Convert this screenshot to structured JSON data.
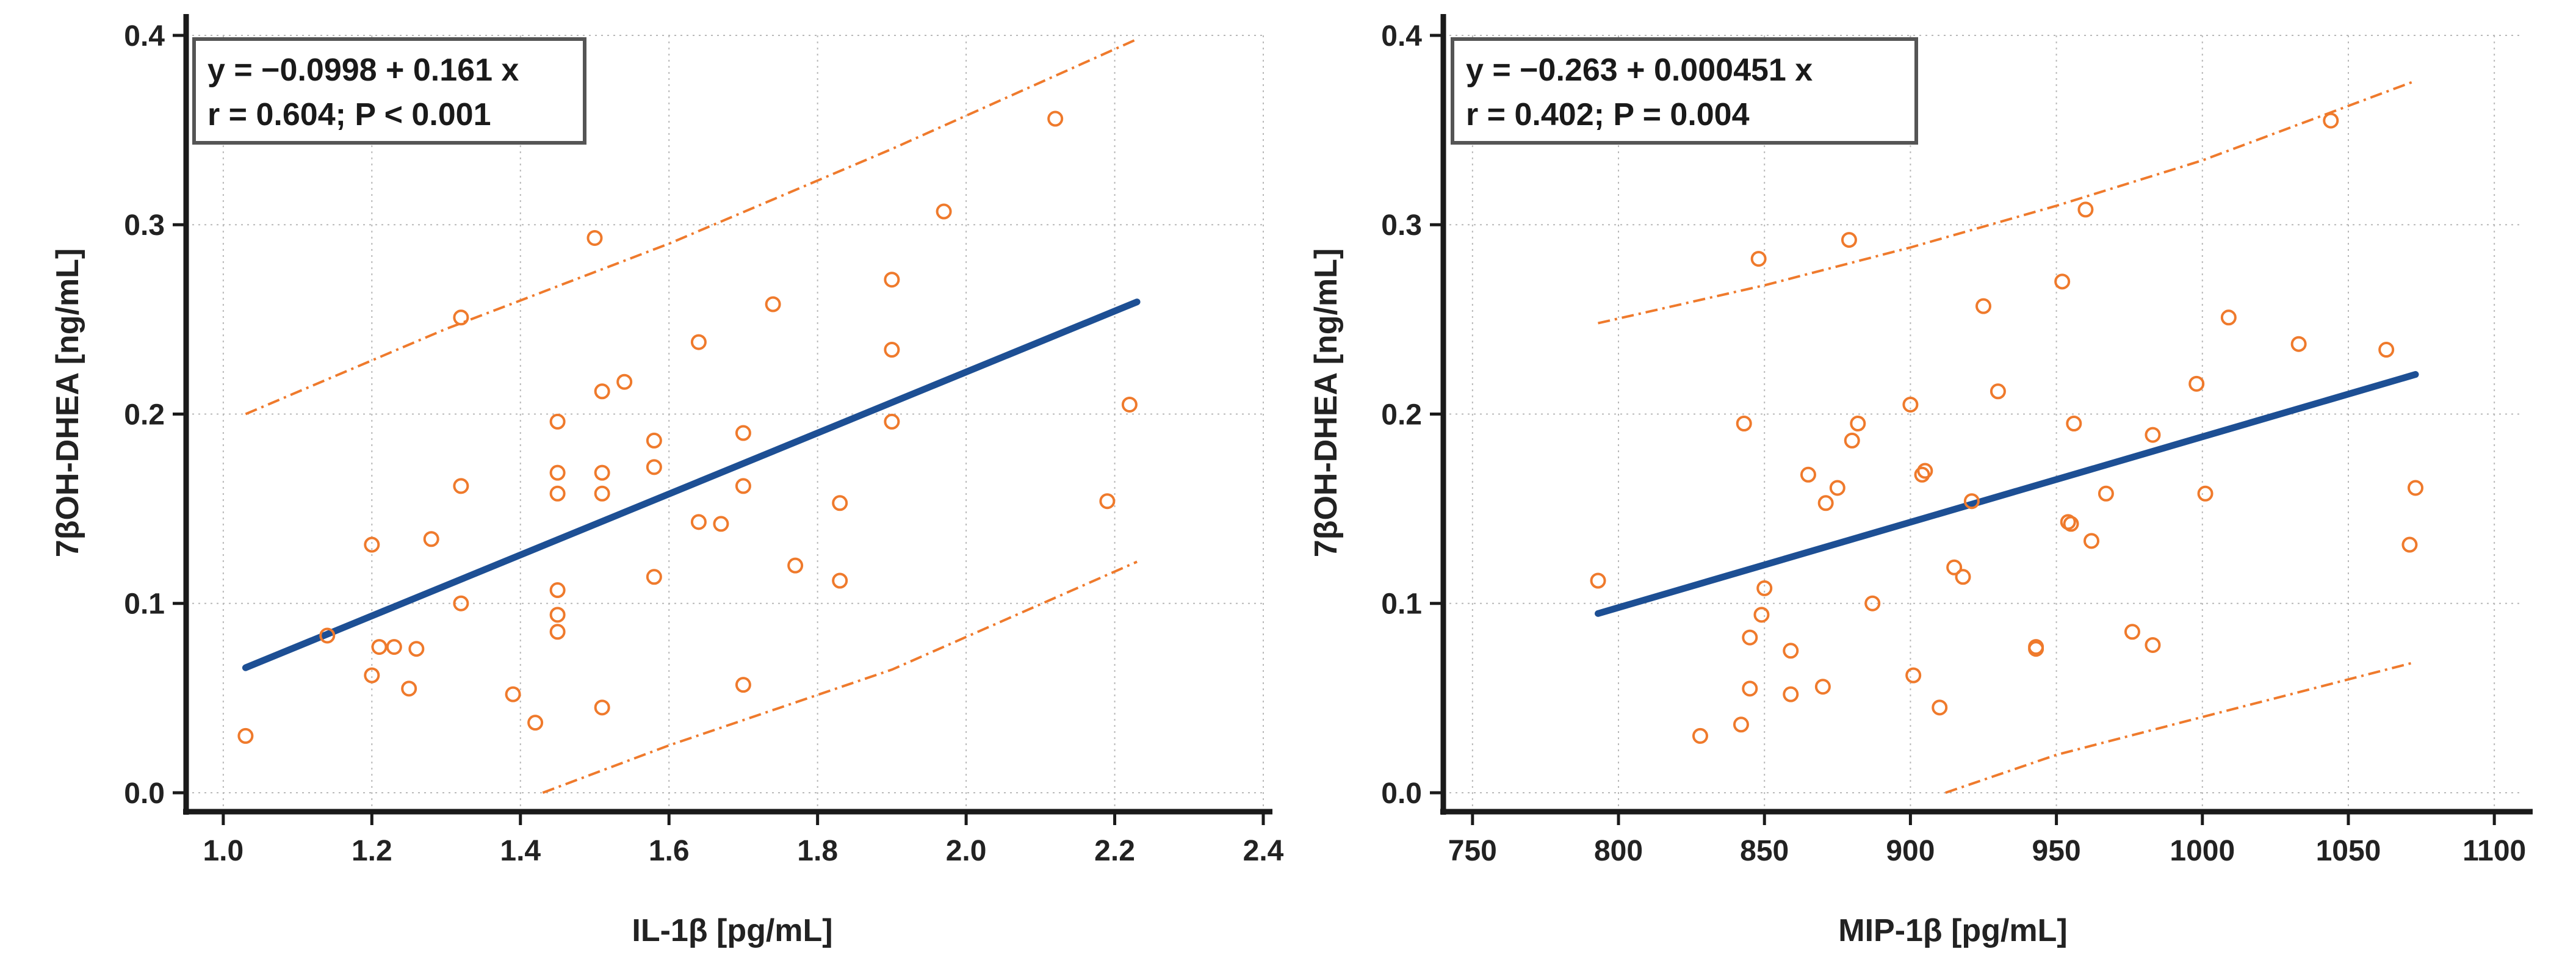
{
  "chart_data": [
    {
      "type": "scatter",
      "title": "",
      "xlabel": "IL-1β [pg/mL]",
      "ylabel": "7βOH-DHEA [ng/mL]",
      "xlim": [
        0.95,
        2.4
      ],
      "ylim": [
        -0.01,
        0.4
      ],
      "xticks": [
        1.0,
        1.2,
        1.4,
        1.6,
        1.8,
        2.0,
        2.2,
        2.4
      ],
      "xtick_labels": [
        "1.0",
        "1.2",
        "1.4",
        "1.6",
        "1.8",
        "2.0",
        "2.2",
        "2.4"
      ],
      "yticks": [
        0.0,
        0.1,
        0.2,
        0.3,
        0.4
      ],
      "ytick_labels": [
        "0.0",
        "0.1",
        "0.2",
        "0.3",
        "0.4"
      ],
      "grid": true,
      "equation_line1": "y = −0.0998  +  0.161  x",
      "equation_line2": "r = 0.604; P < 0.001",
      "fit": {
        "intercept": -0.0998,
        "slope": 0.161,
        "x_range": [
          1.03,
          2.23
        ]
      },
      "prediction_band": {
        "upper": [
          [
            1.03,
            0.2
          ],
          [
            1.3,
            0.245
          ],
          [
            1.6,
            0.29
          ],
          [
            1.9,
            0.34
          ],
          [
            2.23,
            0.398
          ]
        ],
        "lower": [
          [
            1.43,
            0.0
          ],
          [
            1.6,
            0.025
          ],
          [
            1.9,
            0.065
          ],
          [
            2.23,
            0.122
          ]
        ]
      },
      "points": [
        [
          1.03,
          0.03
        ],
        [
          1.14,
          0.083
        ],
        [
          1.2,
          0.131
        ],
        [
          1.2,
          0.062
        ],
        [
          1.21,
          0.077
        ],
        [
          1.23,
          0.077
        ],
        [
          1.25,
          0.055
        ],
        [
          1.26,
          0.076
        ],
        [
          1.28,
          0.134
        ],
        [
          1.32,
          0.162
        ],
        [
          1.32,
          0.251
        ],
        [
          1.32,
          0.1
        ],
        [
          1.39,
          0.052
        ],
        [
          1.42,
          0.037
        ],
        [
          1.45,
          0.196
        ],
        [
          1.45,
          0.169
        ],
        [
          1.45,
          0.158
        ],
        [
          1.45,
          0.107
        ],
        [
          1.45,
          0.094
        ],
        [
          1.45,
          0.085
        ],
        [
          1.5,
          0.293
        ],
        [
          1.51,
          0.212
        ],
        [
          1.51,
          0.169
        ],
        [
          1.51,
          0.158
        ],
        [
          1.51,
          0.045
        ],
        [
          1.54,
          0.217
        ],
        [
          1.58,
          0.186
        ],
        [
          1.58,
          0.172
        ],
        [
          1.58,
          0.114
        ],
        [
          1.64,
          0.238
        ],
        [
          1.64,
          0.143
        ],
        [
          1.67,
          0.142
        ],
        [
          1.7,
          0.19
        ],
        [
          1.7,
          0.162
        ],
        [
          1.7,
          0.057
        ],
        [
          1.74,
          0.258
        ],
        [
          1.77,
          0.12
        ],
        [
          1.83,
          0.153
        ],
        [
          1.83,
          0.112
        ],
        [
          1.9,
          0.271
        ],
        [
          1.9,
          0.234
        ],
        [
          1.9,
          0.196
        ],
        [
          1.97,
          0.307
        ],
        [
          2.12,
          0.356
        ],
        [
          2.19,
          0.154
        ],
        [
          2.22,
          0.205
        ]
      ]
    },
    {
      "type": "scatter",
      "title": "",
      "xlabel": "MIP-1β [pg/mL]",
      "ylabel": "7βOH-DHEA [ng/mL]",
      "xlim": [
        740,
        1110
      ],
      "ylim": [
        -0.01,
        0.4
      ],
      "xticks": [
        750,
        800,
        850,
        900,
        950,
        1000,
        1050,
        1100
      ],
      "xtick_labels": [
        "750",
        "800",
        "850",
        "900",
        "950",
        "1000",
        "1050",
        "1100"
      ],
      "yticks": [
        0.0,
        0.1,
        0.2,
        0.3,
        0.4
      ],
      "ytick_labels": [
        "0.0",
        "0.1",
        "0.2",
        "0.3",
        "0.4"
      ],
      "grid": true,
      "equation_line1": "y = −0.263  +  0.000451  x",
      "equation_line2": "r = 0.402; P = 0.004",
      "fit": {
        "intercept": -0.263,
        "slope": 0.000451,
        "x_range": [
          793,
          1073
        ]
      },
      "prediction_band": {
        "upper": [
          [
            793,
            0.248
          ],
          [
            850,
            0.268
          ],
          [
            900,
            0.288
          ],
          [
            950,
            0.31
          ],
          [
            1000,
            0.334
          ],
          [
            1073,
            0.376
          ]
        ],
        "lower": [
          [
            912,
            0.0
          ],
          [
            950,
            0.02
          ],
          [
            1000,
            0.04
          ],
          [
            1073,
            0.069
          ]
        ]
      },
      "points": [
        [
          793,
          0.112
        ],
        [
          828,
          0.03
        ],
        [
          842,
          0.036
        ],
        [
          843,
          0.195
        ],
        [
          845,
          0.082
        ],
        [
          845,
          0.055
        ],
        [
          848,
          0.282
        ],
        [
          849,
          0.094
        ],
        [
          850,
          0.108
        ],
        [
          859,
          0.075
        ],
        [
          859,
          0.052
        ],
        [
          865,
          0.168
        ],
        [
          870,
          0.056
        ],
        [
          871,
          0.153
        ],
        [
          875,
          0.161
        ],
        [
          879,
          0.292
        ],
        [
          880,
          0.186
        ],
        [
          882,
          0.195
        ],
        [
          887,
          0.1
        ],
        [
          900,
          0.205
        ],
        [
          901,
          0.062
        ],
        [
          904,
          0.168
        ],
        [
          905,
          0.17
        ],
        [
          910,
          0.045
        ],
        [
          915,
          0.119
        ],
        [
          918,
          0.114
        ],
        [
          921,
          0.154
        ],
        [
          925,
          0.257
        ],
        [
          930,
          0.212
        ],
        [
          943,
          0.077
        ],
        [
          943,
          0.076
        ],
        [
          952,
          0.27
        ],
        [
          954,
          0.143
        ],
        [
          955,
          0.142
        ],
        [
          956,
          0.195
        ],
        [
          960,
          0.308
        ],
        [
          962,
          0.133
        ],
        [
          967,
          0.158
        ],
        [
          976,
          0.085
        ],
        [
          983,
          0.189
        ],
        [
          983,
          0.078
        ],
        [
          998,
          0.216
        ],
        [
          1001,
          0.158
        ],
        [
          1009,
          0.251
        ],
        [
          1033,
          0.237
        ],
        [
          1044,
          0.355
        ],
        [
          1063,
          0.234
        ],
        [
          1071,
          0.131
        ],
        [
          1073,
          0.161
        ]
      ]
    }
  ]
}
